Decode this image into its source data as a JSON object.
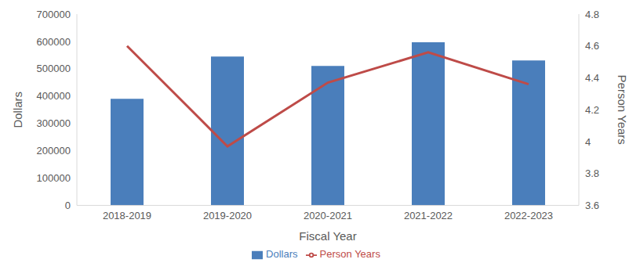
{
  "chart_data": {
    "type": "bar",
    "x_label": "Fiscal Year",
    "y_label": "Dollars",
    "y2_label": "Person Years",
    "categories": [
      "2018-2019",
      "2019-2020",
      "2020-2021",
      "2021-2022",
      "2022-2023"
    ],
    "series": [
      {
        "name": "Dollars",
        "type": "bar",
        "color": "#4a7ebb",
        "values": [
          390000,
          545000,
          510000,
          597000,
          530000
        ]
      },
      {
        "name": "Person Years",
        "type": "line",
        "axis": "y2",
        "color": "#be4b48",
        "line_style": "solid",
        "marker": "none",
        "values": [
          4.6,
          3.97,
          4.37,
          4.56,
          4.36
        ]
      }
    ],
    "ylim": [
      0,
      700000
    ],
    "yticks": [
      0,
      100000,
      200000,
      300000,
      400000,
      500000,
      600000,
      700000
    ],
    "y2lim": [
      3.6,
      4.8
    ],
    "y2ticks": [
      3.6,
      3.8,
      4,
      4.2,
      4.4,
      4.6,
      4.8
    ],
    "grid": false,
    "legend": "bottom"
  }
}
